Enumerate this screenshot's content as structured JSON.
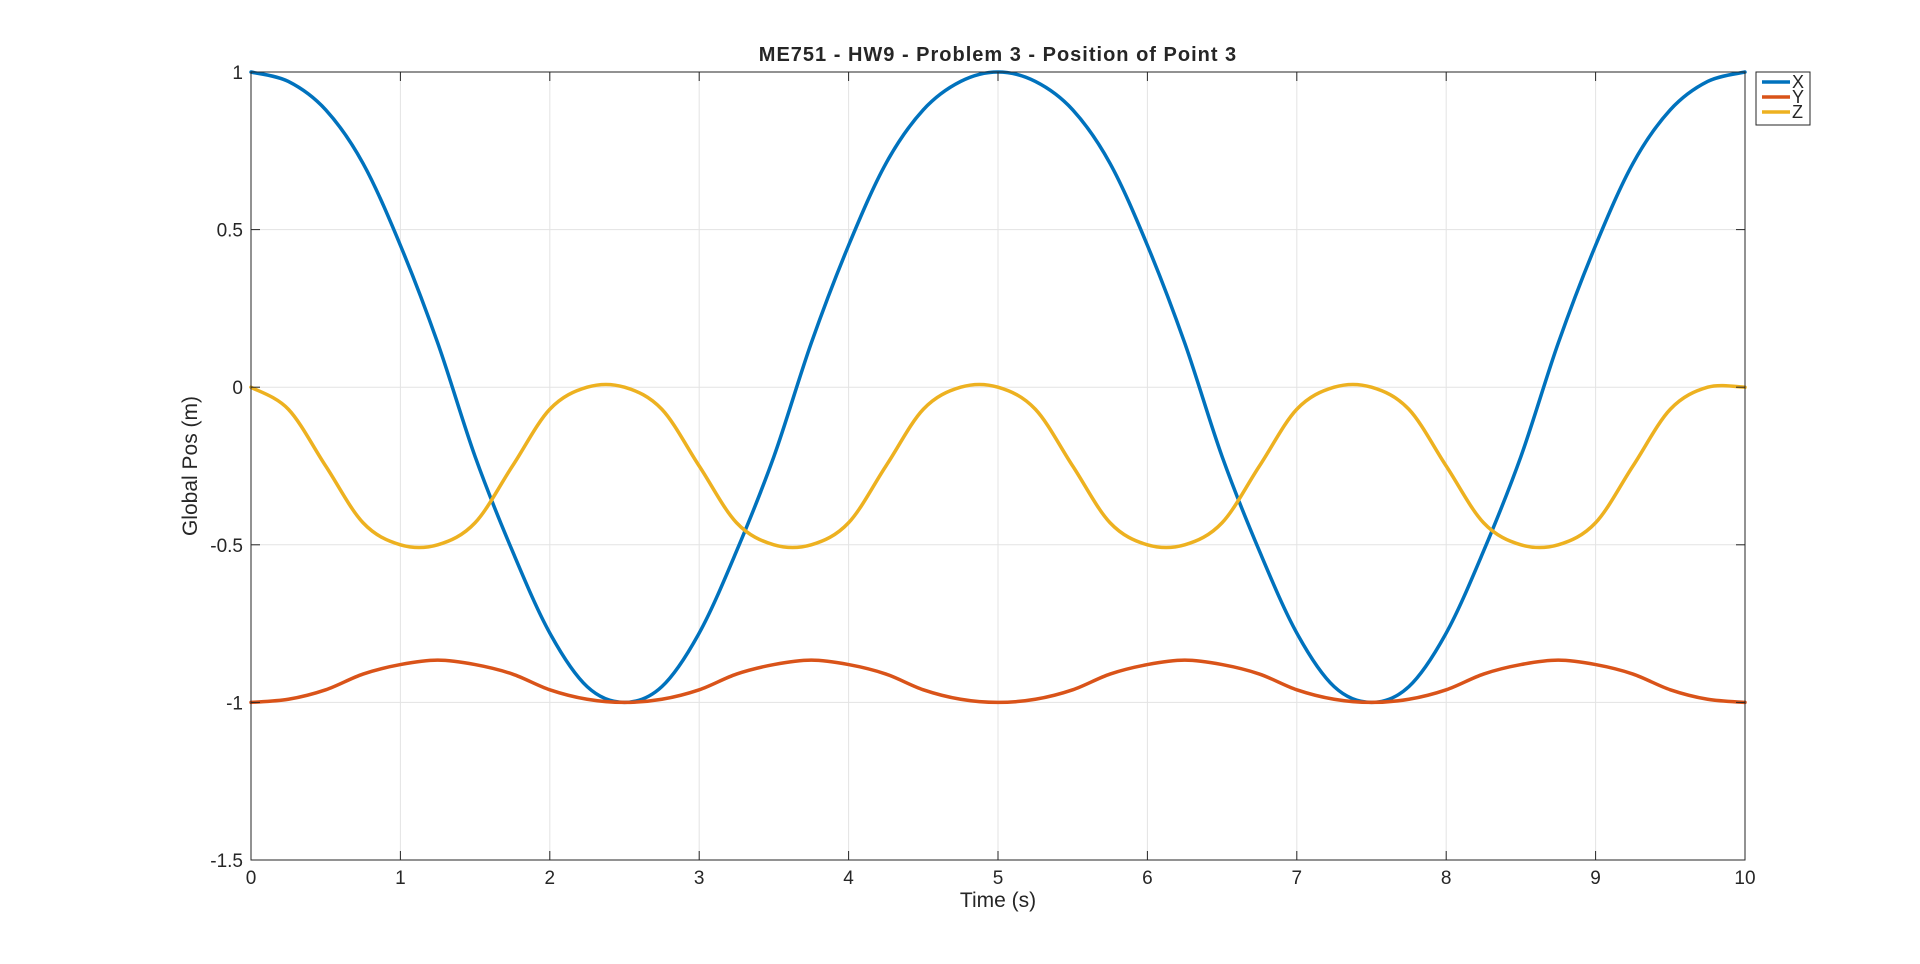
{
  "chart_data": {
    "type": "line",
    "title": "ME751 - HW9 - Problem 3 - Position of Point 3",
    "xlabel": "Time (s)",
    "ylabel": "Global Pos (m)",
    "xlim": [
      0,
      10
    ],
    "ylim": [
      -1.5,
      1
    ],
    "xticks": [
      0,
      1,
      2,
      3,
      4,
      5,
      6,
      7,
      8,
      9,
      10
    ],
    "yticks": [
      -1.5,
      -1,
      -0.5,
      0,
      0.5,
      1
    ],
    "xtick_labels": [
      "0",
      "1",
      "2",
      "3",
      "4",
      "5",
      "6",
      "7",
      "8",
      "9",
      "10"
    ],
    "ytick_labels": [
      "-1.5",
      "-1",
      "-0.5",
      "0",
      "0.5",
      "1"
    ],
    "grid": true,
    "legend_position": "top-right (outside plot area)",
    "x": [
      0,
      0.25,
      0.5,
      0.75,
      1,
      1.25,
      1.5,
      1.75,
      2,
      2.25,
      2.5,
      2.75,
      3,
      3.25,
      3.5,
      3.75,
      4,
      4.25,
      4.5,
      4.75,
      5,
      5.25,
      5.5,
      5.75,
      6,
      6.25,
      6.5,
      6.75,
      7,
      7.25,
      7.5,
      7.75,
      8,
      8.25,
      8.5,
      8.75,
      9,
      9.25,
      9.5,
      9.75,
      10
    ],
    "series": [
      {
        "name": "X",
        "color": "#0072BD",
        "values": [
          1,
          0.97,
          0.88,
          0.71,
          0.45,
          0.14,
          -0.22,
          -0.52,
          -0.78,
          -0.95,
          -1,
          -0.95,
          -0.78,
          -0.52,
          -0.22,
          0.14,
          0.45,
          0.71,
          0.88,
          0.97,
          1,
          0.97,
          0.88,
          0.71,
          0.45,
          0.14,
          -0.22,
          -0.52,
          -0.78,
          -0.95,
          -1,
          -0.95,
          -0.78,
          -0.52,
          -0.22,
          0.14,
          0.45,
          0.71,
          0.88,
          0.97,
          1
        ]
      },
      {
        "name": "Y",
        "color": "#D95319",
        "values": [
          -1,
          -0.99,
          -0.96,
          -0.91,
          -0.88,
          -0.866,
          -0.88,
          -0.91,
          -0.96,
          -0.99,
          -1,
          -0.99,
          -0.96,
          -0.91,
          -0.88,
          -0.866,
          -0.88,
          -0.91,
          -0.96,
          -0.99,
          -1,
          -0.99,
          -0.96,
          -0.91,
          -0.88,
          -0.866,
          -0.88,
          -0.91,
          -0.96,
          -0.99,
          -1,
          -0.99,
          -0.96,
          -0.91,
          -0.88,
          -0.866,
          -0.88,
          -0.91,
          -0.96,
          -0.99,
          -1
        ]
      },
      {
        "name": "Z",
        "color": "#EDB120",
        "values": [
          0,
          -0.07,
          -0.25,
          -0.43,
          -0.5,
          -0.5,
          -0.43,
          -0.25,
          -0.07,
          0,
          0,
          -0.07,
          -0.25,
          -0.43,
          -0.5,
          -0.5,
          -0.43,
          -0.25,
          -0.07,
          0,
          0,
          -0.07,
          -0.25,
          -0.43,
          -0.5,
          -0.5,
          -0.43,
          -0.25,
          -0.07,
          0,
          0,
          -0.07,
          -0.25,
          -0.43,
          -0.5,
          -0.5,
          -0.43,
          -0.25,
          -0.07,
          0,
          0
        ]
      }
    ]
  }
}
